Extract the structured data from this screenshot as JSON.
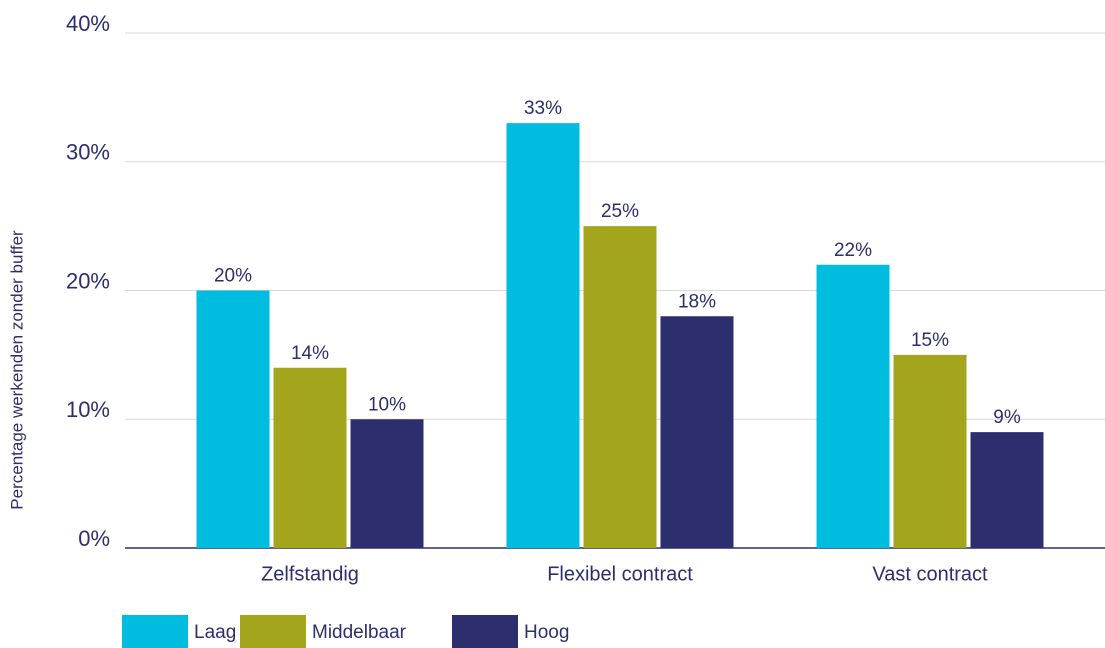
{
  "chart_data": {
    "type": "bar",
    "y_label": "Percentage werkenden zonder buffer",
    "categories": [
      "Zelfstandig",
      "Flexibel contract",
      "Vast contract"
    ],
    "series": [
      {
        "name": "Laag",
        "color": "#00bde0",
        "values": [
          20,
          33,
          22
        ],
        "value_labels": [
          "20%",
          "33%",
          "22%"
        ]
      },
      {
        "name": "Middelbaar",
        "color": "#a3a51d",
        "values": [
          14,
          25,
          15
        ],
        "value_labels": [
          "14%",
          "25%",
          "15%"
        ]
      },
      {
        "name": "Hoog",
        "color": "#2d2e6e",
        "values": [
          10,
          18,
          9
        ],
        "value_labels": [
          "10%",
          "18%",
          "9%"
        ]
      }
    ],
    "ylim": [
      0,
      40
    ],
    "yticks": [
      {
        "value": 0,
        "label": "0%"
      },
      {
        "value": 10,
        "label": "10%"
      },
      {
        "value": 20,
        "label": "20%"
      },
      {
        "value": 30,
        "label": "30%"
      },
      {
        "value": 40,
        "label": "40%"
      }
    ],
    "grid": true
  }
}
